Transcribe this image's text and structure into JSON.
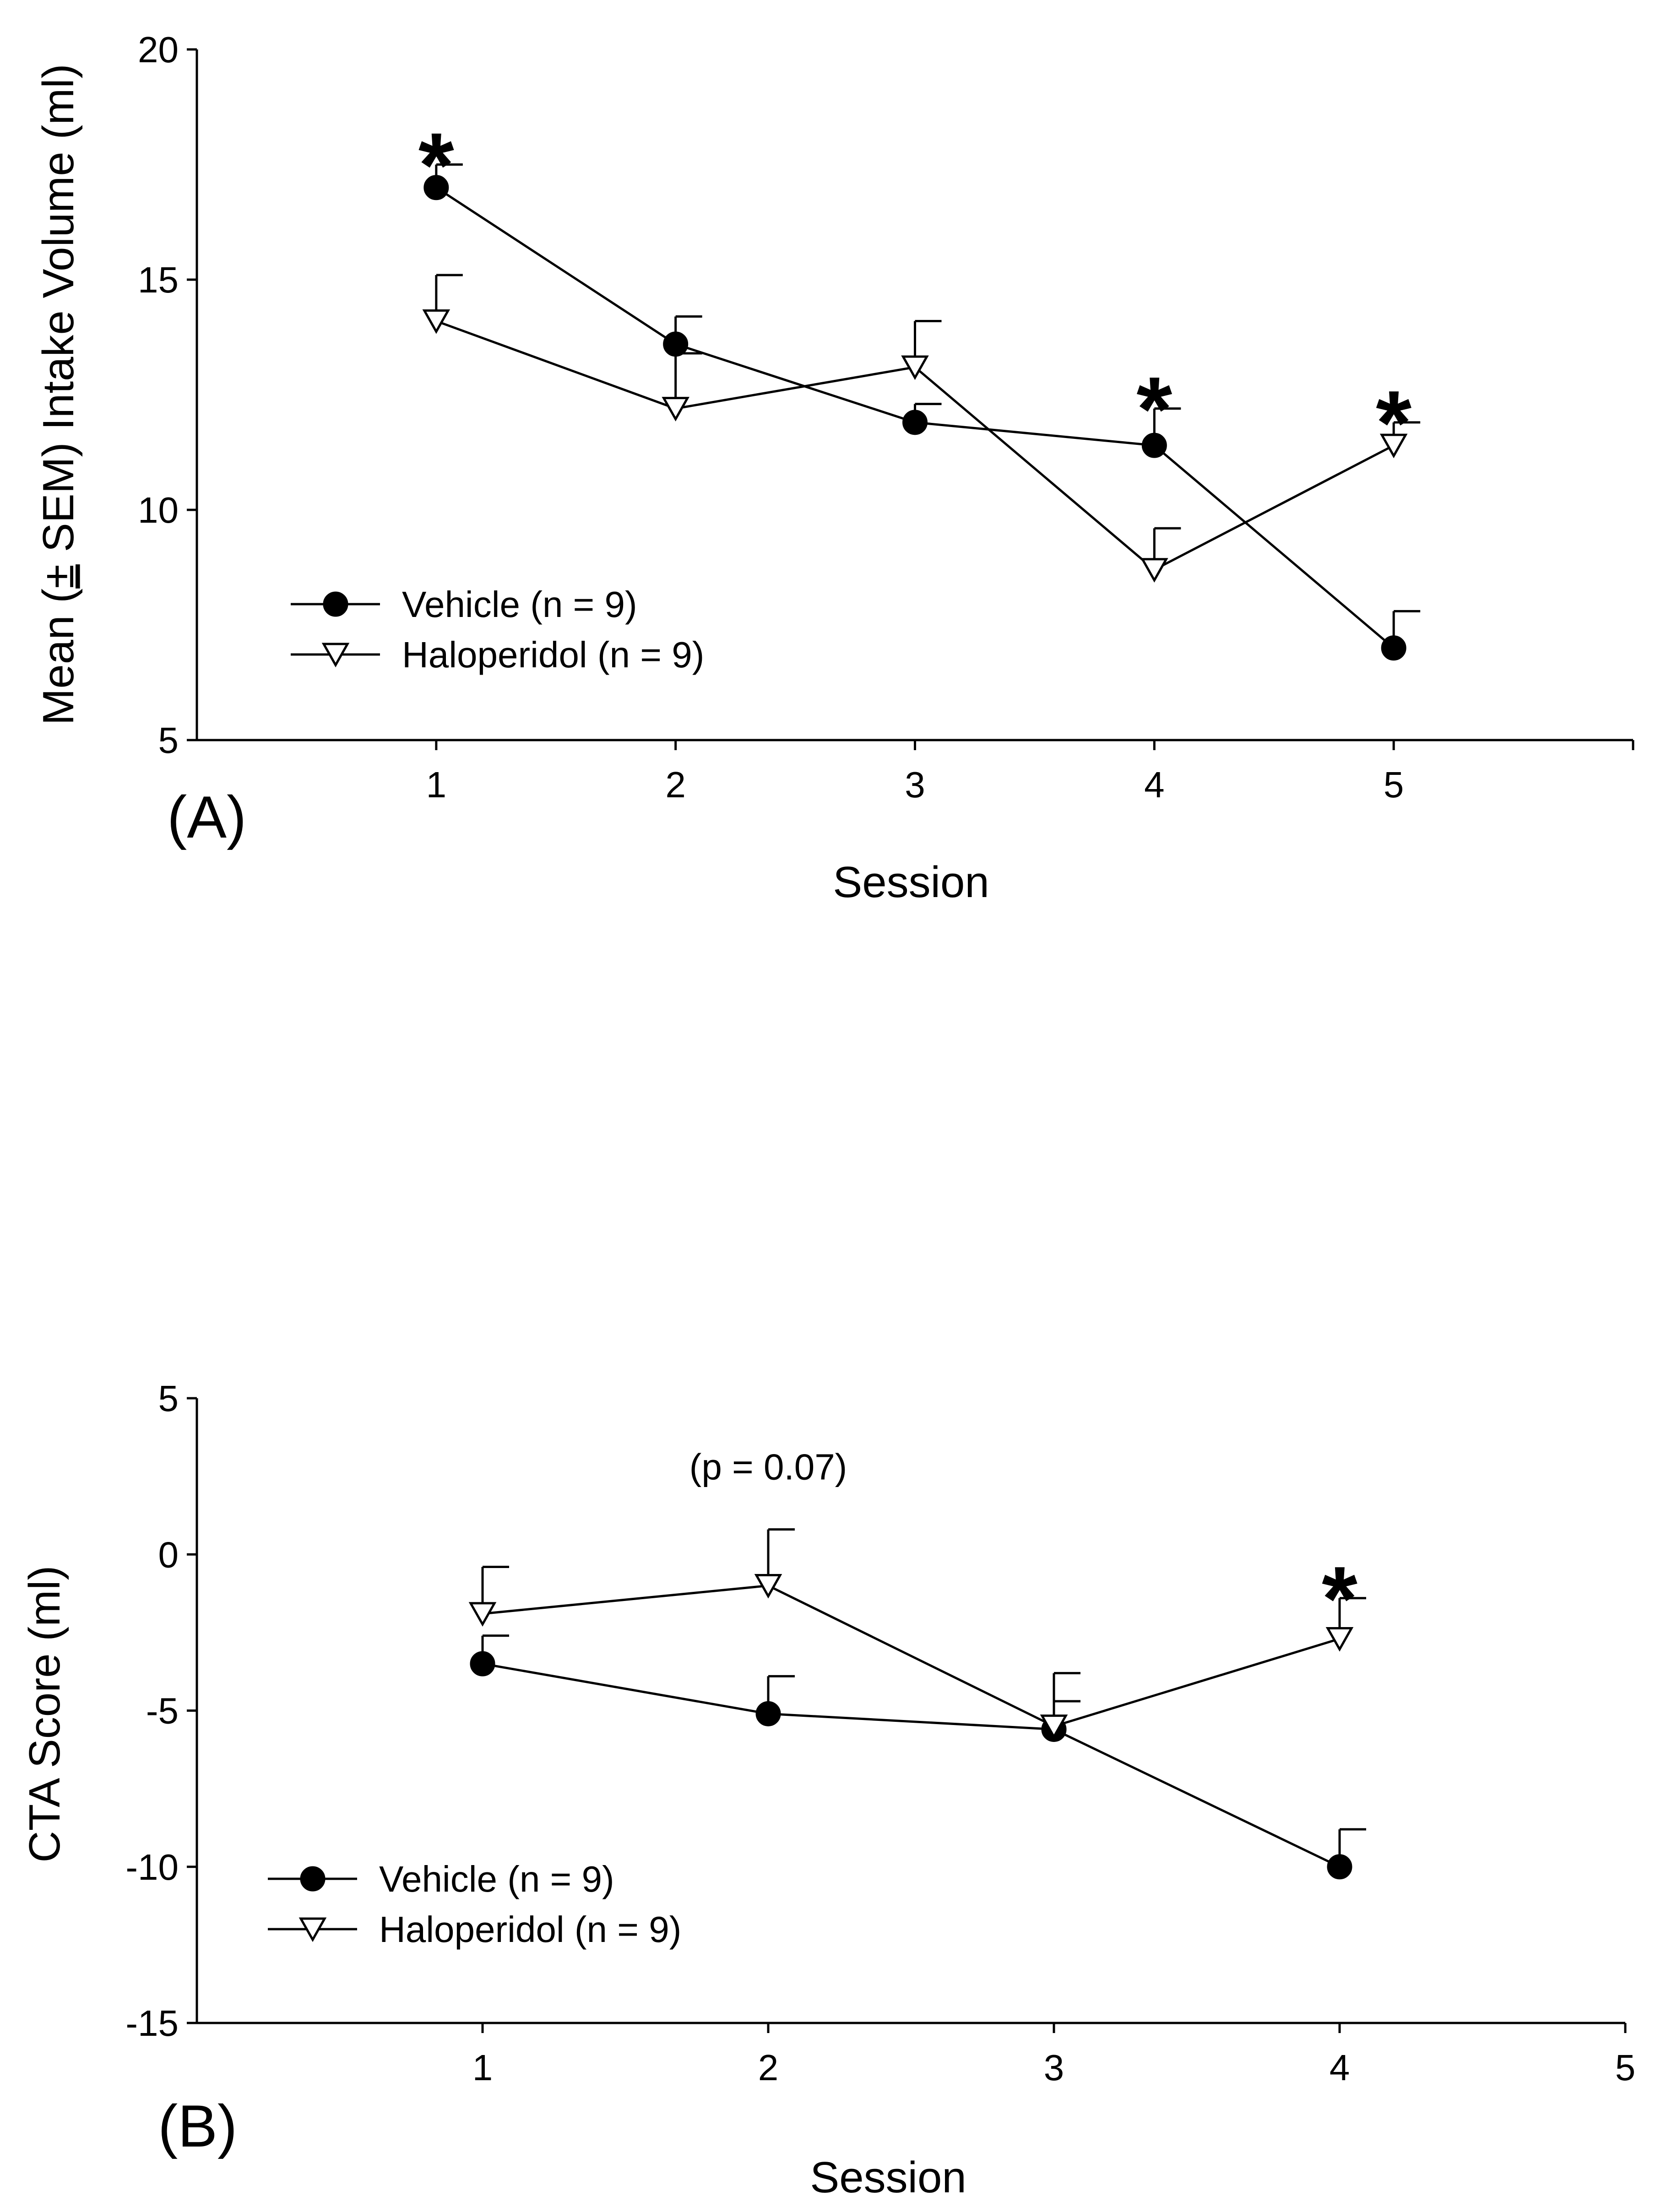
{
  "chart_data": [
    {
      "type": "line",
      "panel_label": "(A)",
      "title": "",
      "xlabel": "Session",
      "ylabel": "Mean (± SEM) Intake Volume (ml)",
      "ylabel_parts": [
        "Mean (",
        "±",
        " SEM) Intake Volume (ml)"
      ],
      "xlim": [
        0,
        6
      ],
      "ylim": [
        5,
        20
      ],
      "xticks": [
        1,
        2,
        3,
        4,
        5
      ],
      "yticks": [
        5,
        10,
        15,
        20
      ],
      "grid": false,
      "legend_position": "bottom-left",
      "x": [
        1,
        2,
        3,
        4,
        5
      ],
      "series": [
        {
          "name": "Vehicle (n = 9)",
          "marker": "filled-circle",
          "values": [
            17.0,
            13.6,
            11.9,
            11.4,
            7.0
          ],
          "sem": [
            0.5,
            0.6,
            0.4,
            0.8,
            0.8
          ]
        },
        {
          "name": "Haloperidol (n = 9)",
          "marker": "open-triangle-down",
          "values": [
            14.1,
            12.2,
            13.1,
            8.7,
            11.4
          ],
          "sem": [
            1.0,
            1.2,
            1.0,
            0.9,
            0.5
          ]
        }
      ],
      "annotations": [
        {
          "text": "*",
          "x": 1,
          "y": 17.5
        },
        {
          "text": "*",
          "x": 4,
          "y": 12.2
        },
        {
          "text": "*",
          "x": 5,
          "y": 11.9
        }
      ]
    },
    {
      "type": "line",
      "panel_label": "(B)",
      "title": "",
      "xlabel": "Session",
      "ylabel": "CTA Score (ml)",
      "xlim": [
        0,
        5
      ],
      "ylim": [
        -15,
        5
      ],
      "xticks": [
        1,
        2,
        3,
        4,
        5
      ],
      "yticks": [
        -15,
        -10,
        -5,
        0,
        5
      ],
      "grid": false,
      "legend_position": "bottom-left",
      "x": [
        1,
        2,
        3,
        4
      ],
      "series": [
        {
          "name": "Vehicle (n = 9)",
          "marker": "filled-circle",
          "values": [
            -3.5,
            -5.1,
            -5.6,
            -10.0
          ],
          "sem": [
            0.9,
            1.2,
            0.9,
            1.2
          ]
        },
        {
          "name": "Haloperidol (n = 9)",
          "marker": "open-triangle-down",
          "values": [
            -1.9,
            -1.0,
            -5.5,
            -2.7
          ],
          "sem": [
            1.5,
            1.8,
            1.7,
            1.3
          ]
        }
      ],
      "annotations": [
        {
          "text": "(p = 0.07)",
          "x": 2,
          "y": 2.4
        },
        {
          "text": "*",
          "x": 4,
          "y": -1.4
        }
      ]
    }
  ]
}
